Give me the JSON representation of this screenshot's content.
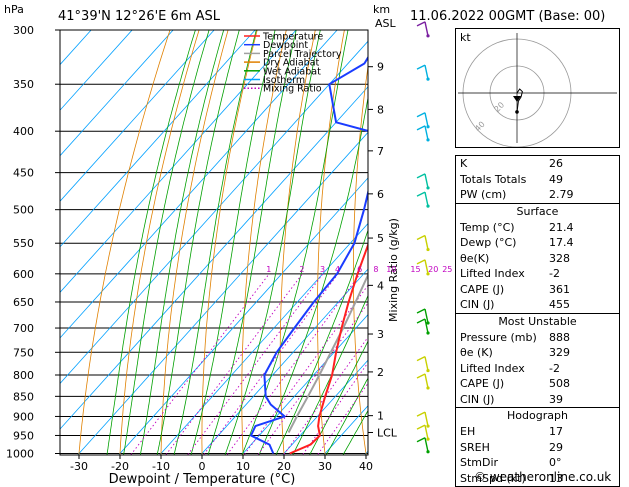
{
  "header": {
    "hpa_label": "hPa",
    "location": "41°39'N 12°26'E 6m ASL",
    "km_label": "km",
    "asl_label": "ASL",
    "datetime": "11.06.2022 00GMT (Base: 00)"
  },
  "legend": [
    {
      "label": "Temperature",
      "color": "#ff2020"
    },
    {
      "label": "Dewpoint",
      "color": "#1a3cff"
    },
    {
      "label": "Parcel Trajectory",
      "color": "#a0a0a0"
    },
    {
      "label": "Dry Adiabat",
      "color": "#e08000"
    },
    {
      "label": "Wet Adiabat",
      "color": "#00a000"
    },
    {
      "label": "Isotherm",
      "color": "#00a0ff"
    },
    {
      "label": "Mixing Ratio",
      "color": "#c000c0",
      "dotted": true
    }
  ],
  "chart_data": {
    "type": "skew-t",
    "xlabel": "Dewpoint / Temperature (°C)",
    "ylabel_right": "Mixing Ratio (g/kg)",
    "pressure_levels": [
      300,
      350,
      400,
      450,
      500,
      550,
      600,
      650,
      700,
      750,
      800,
      850,
      900,
      950,
      1000
    ],
    "temperature_ticks": [
      -30,
      -20,
      -10,
      0,
      10,
      20,
      30,
      40
    ],
    "xlim": [
      -37,
      40
    ],
    "ylim": [
      300,
      1010
    ],
    "km_ticks": [
      {
        "label": "9",
        "p": 333
      },
      {
        "label": "8",
        "p": 376
      },
      {
        "label": "7",
        "p": 423
      },
      {
        "label": "6",
        "p": 478
      },
      {
        "label": "5",
        "p": 542
      },
      {
        "label": "4",
        "p": 620
      },
      {
        "label": "3",
        "p": 712
      },
      {
        "label": "2",
        "p": 793
      },
      {
        "label": "1",
        "p": 898
      },
      {
        "label": "LCL",
        "p": 942
      }
    ],
    "mixing_ratio_labels": [
      "1",
      "2",
      "3",
      "4",
      "6",
      "8",
      "10",
      "15",
      "20",
      "25"
    ],
    "mixing_ratio_values": [
      1,
      2,
      3,
      4,
      6,
      8,
      10,
      15,
      20,
      25
    ],
    "temperature_profile": [
      {
        "p": 1000,
        "t": 21.4
      },
      {
        "p": 975,
        "t": 24.5
      },
      {
        "p": 950,
        "t": 24.8
      },
      {
        "p": 925,
        "t": 22.3
      },
      {
        "p": 900,
        "t": 20.5
      },
      {
        "p": 850,
        "t": 17.5
      },
      {
        "p": 800,
        "t": 14.5
      },
      {
        "p": 750,
        "t": 10.5
      },
      {
        "p": 700,
        "t": 6.5
      },
      {
        "p": 650,
        "t": 2.5
      },
      {
        "p": 600,
        "t": -1.5
      },
      {
        "p": 550,
        "t": -5.5
      },
      {
        "p": 500,
        "t": -10.5
      },
      {
        "p": 450,
        "t": -16.5
      },
      {
        "p": 400,
        "t": -23.5
      },
      {
        "p": 350,
        "t": -32
      },
      {
        "p": 300,
        "t": -41
      }
    ],
    "dewpoint_profile": [
      {
        "p": 1000,
        "t": 17.4
      },
      {
        "p": 975,
        "t": 14.5
      },
      {
        "p": 950,
        "t": 8
      },
      {
        "p": 925,
        "t": 7
      },
      {
        "p": 900,
        "t": 12
      },
      {
        "p": 870,
        "t": 6
      },
      {
        "p": 850,
        "t": 3
      },
      {
        "p": 800,
        "t": -2
      },
      {
        "p": 750,
        "t": -4
      },
      {
        "p": 700,
        "t": -5
      },
      {
        "p": 650,
        "t": -6
      },
      {
        "p": 600,
        "t": -6.5
      },
      {
        "p": 550,
        "t": -9
      },
      {
        "p": 500,
        "t": -14
      },
      {
        "p": 450,
        "t": -20
      },
      {
        "p": 420,
        "t": -26
      },
      {
        "p": 400,
        "t": -30
      },
      {
        "p": 390,
        "t": -40
      },
      {
        "p": 350,
        "t": -50
      },
      {
        "p": 330,
        "t": -46
      },
      {
        "p": 305,
        "t": -48
      },
      {
        "p": 300,
        "t": -51
      }
    ],
    "parcel_profile": [
      {
        "p": 942,
        "t": 16.5
      },
      {
        "p": 900,
        "t": 15
      },
      {
        "p": 850,
        "t": 13.3
      },
      {
        "p": 800,
        "t": 11.4
      },
      {
        "p": 750,
        "t": 9.2
      },
      {
        "p": 700,
        "t": 6.9
      },
      {
        "p": 650,
        "t": 4.2
      },
      {
        "p": 600,
        "t": 1.2
      },
      {
        "p": 550,
        "t": -2.2
      },
      {
        "p": 500,
        "t": -6.2
      },
      {
        "p": 450,
        "t": -11
      },
      {
        "p": 400,
        "t": -17
      },
      {
        "p": 350,
        "t": -24.5
      },
      {
        "p": 300,
        "t": -34
      }
    ]
  },
  "hodograph": {
    "unit_label": "kt",
    "ring_labels": [
      "20",
      "40"
    ],
    "points": [
      [
        0,
        0
      ],
      [
        2,
        3
      ],
      [
        4,
        1
      ],
      [
        3,
        -3
      ],
      [
        1,
        -6
      ],
      [
        0,
        -14
      ]
    ]
  },
  "indices": [
    {
      "label": "K",
      "value": "26"
    },
    {
      "label": "Totals Totals",
      "value": "49"
    },
    {
      "label": "PW (cm)",
      "value": "2.79"
    }
  ],
  "surface": {
    "title": "Surface",
    "rows": [
      {
        "label": "Temp (°C)",
        "value": "21.4"
      },
      {
        "label": "Dewp (°C)",
        "value": "17.4"
      },
      {
        "label": "θe(K)",
        "value": "328"
      },
      {
        "label": "Lifted Index",
        "value": "-2"
      },
      {
        "label": "CAPE (J)",
        "value": "361"
      },
      {
        "label": "CIN (J)",
        "value": "455"
      }
    ]
  },
  "most_unstable": {
    "title": "Most Unstable",
    "rows": [
      {
        "label": "Pressure (mb)",
        "value": "888"
      },
      {
        "label": "θe (K)",
        "value": "329"
      },
      {
        "label": "Lifted Index",
        "value": "-2"
      },
      {
        "label": "CAPE (J)",
        "value": "508"
      },
      {
        "label": "CIN (J)",
        "value": "39"
      }
    ]
  },
  "hodograph_table": {
    "title": "Hodograph",
    "rows": [
      {
        "label": "EH",
        "value": "17"
      },
      {
        "label": "SREH",
        "value": "29"
      },
      {
        "label": "StmDir",
        "value": "0°"
      },
      {
        "label": "StmSpd (kt)",
        "value": "13"
      }
    ]
  },
  "footer": {
    "copyright": "© weatheronline.co.uk"
  },
  "colors": {
    "temperature": "#ff2020",
    "dewpoint": "#1a3cff",
    "parcel": "#a0a0a0",
    "dry_adiabat": "#e08000",
    "wet_adiabat": "#00a000",
    "isotherm": "#00a0ff",
    "mixing_ratio": "#c000c0"
  }
}
